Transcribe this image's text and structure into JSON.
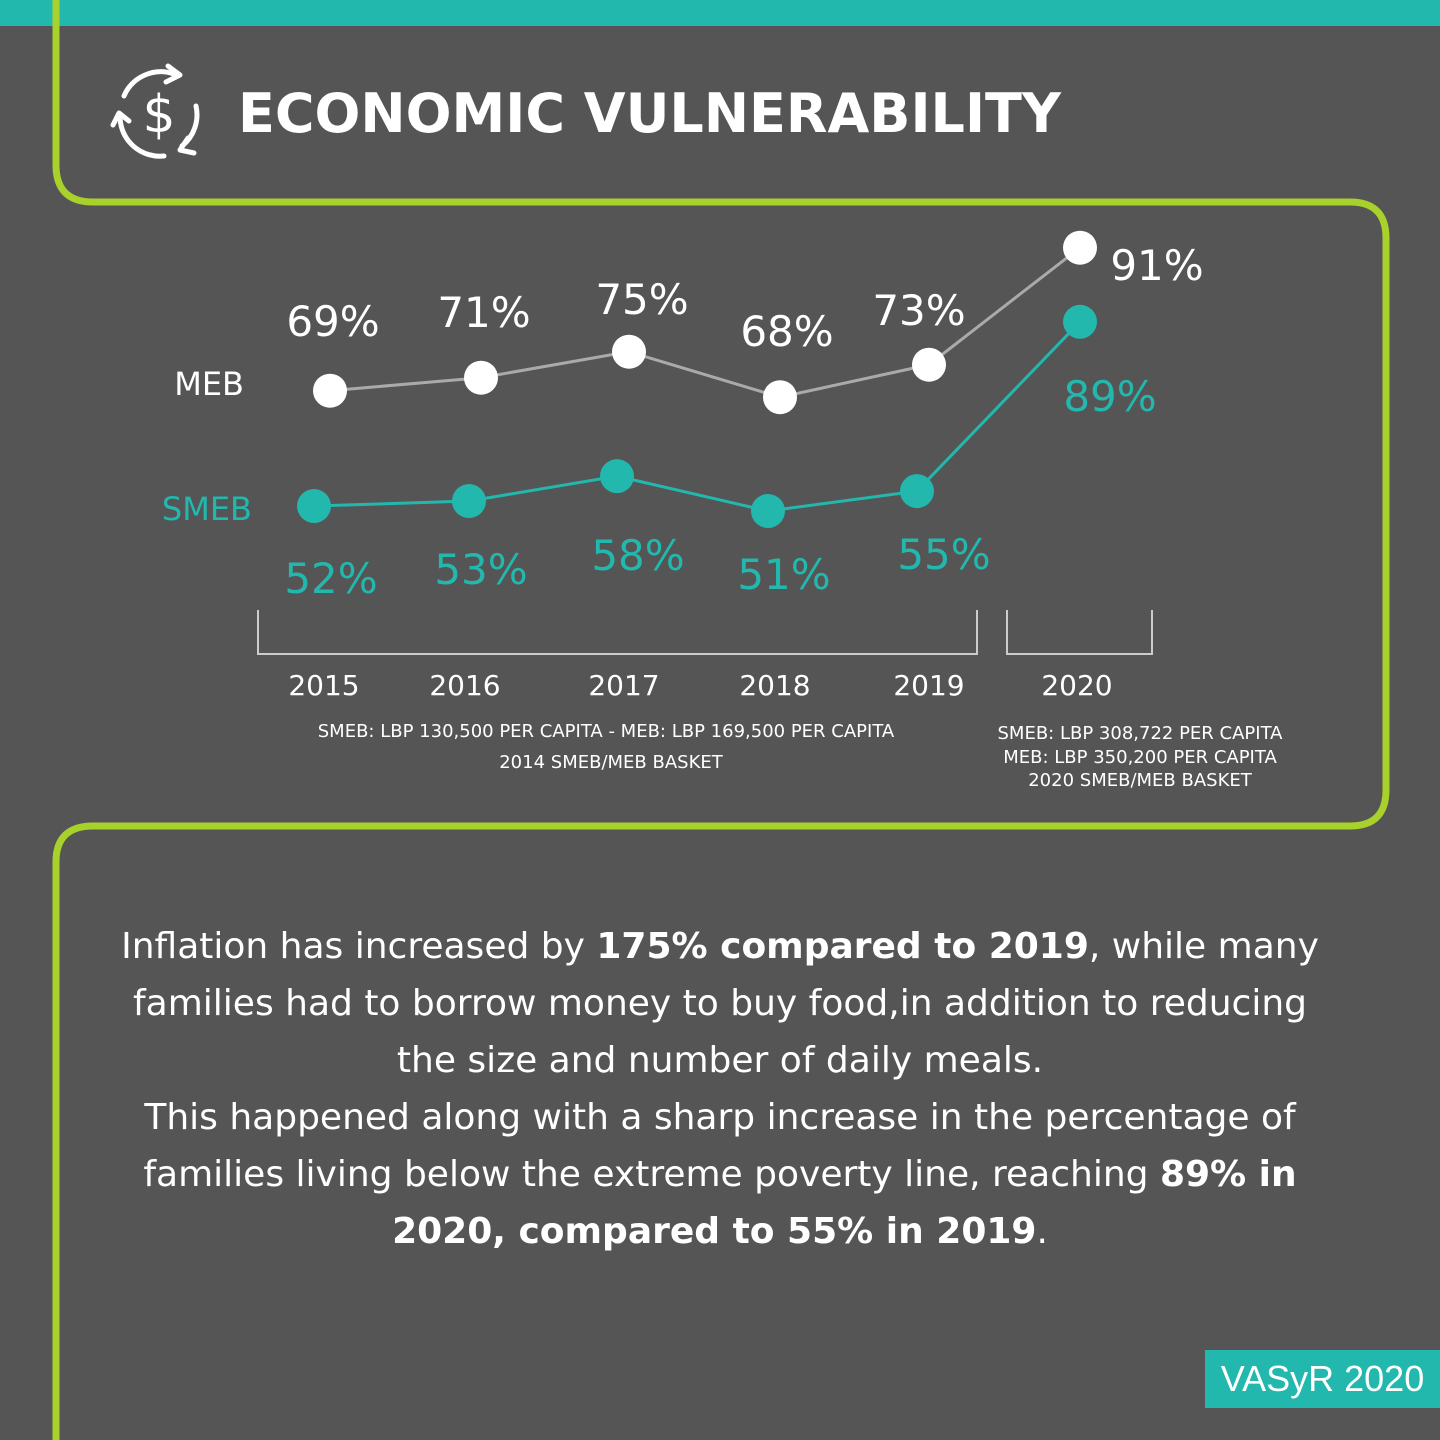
{
  "header": {
    "title": "ECONOMIC VULNERABILITY",
    "icon": "dollar-cycle-icon"
  },
  "colors": {
    "background": "#555555",
    "teal": "#22b8ae",
    "lime": "#a8d12b",
    "meb_line": "#aaaaaa"
  },
  "chart_data": {
    "type": "line",
    "categories": [
      "2015",
      "2016",
      "2017",
      "2018",
      "2019",
      "2020"
    ],
    "series": [
      {
        "name": "MEB",
        "values": [
          69,
          71,
          75,
          68,
          73,
          91
        ],
        "labels": [
          "69%",
          "71%",
          "75%",
          "68%",
          "73%",
          "91%"
        ],
        "color": "#ffffff"
      },
      {
        "name": "SMEB",
        "values": [
          52,
          53,
          58,
          51,
          55,
          89
        ],
        "labels": [
          "52%",
          "53%",
          "58%",
          "51%",
          "55%",
          "89%"
        ],
        "color": "#22b8ae"
      }
    ],
    "group_notes": [
      {
        "years": [
          "2015",
          "2016",
          "2017",
          "2018",
          "2019"
        ],
        "lines": [
          "SMEB: LBP 130,500 PER CAPITA - MEB: LBP 169,500 PER CAPITA",
          "2014 SMEB/MEB BASKET"
        ]
      },
      {
        "years": [
          "2020"
        ],
        "lines": [
          "SMEB: LBP 308,722 PER CAPITA",
          "MEB: LBP 350,200 PER CAPITA",
          "2020 SMEB/MEB BASKET"
        ]
      }
    ]
  },
  "paragraph": {
    "s1": "Inflation has increased by ",
    "b1": "175% compared to 2019",
    "s2": ", while many families had to borrow money to buy food,in addition to reducing the size and number of daily meals.",
    "s3": "This happened along with a sharp increase in the percentage of families living below the extreme poverty line, reaching ",
    "b2": "89% in 2020, compared to 55% in 2019",
    "s4": "."
  },
  "badge": {
    "label": "VASyR 2020"
  }
}
